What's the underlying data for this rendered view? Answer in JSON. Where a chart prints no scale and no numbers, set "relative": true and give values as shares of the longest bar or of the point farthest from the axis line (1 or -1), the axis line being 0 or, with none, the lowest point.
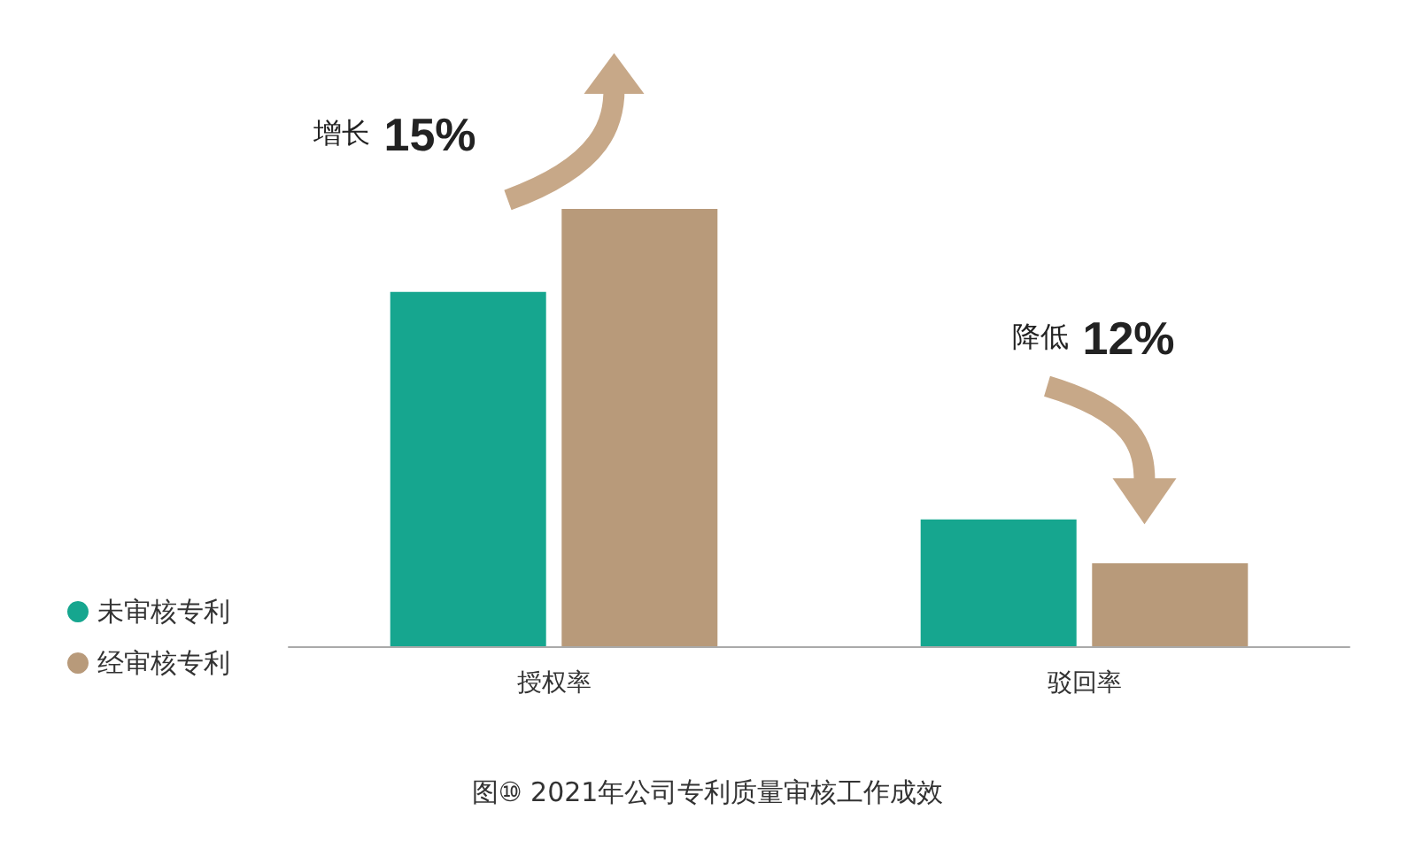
{
  "chart_data": {
    "type": "bar",
    "relative": true,
    "title": "图⑩ 2021年公司专利质量审核工作成效",
    "categories": [
      "授权率",
      "驳回率"
    ],
    "series": [
      {
        "name": "未审核专利",
        "color": "#16a68f",
        "values": [
          0.81,
          0.29
        ]
      },
      {
        "name": "经审核专利",
        "color": "#b89a7a",
        "values": [
          1,
          0.19
        ]
      }
    ],
    "annotations": [
      "增长 15%",
      "降低 12%"
    ],
    "legend": "left"
  }
}
